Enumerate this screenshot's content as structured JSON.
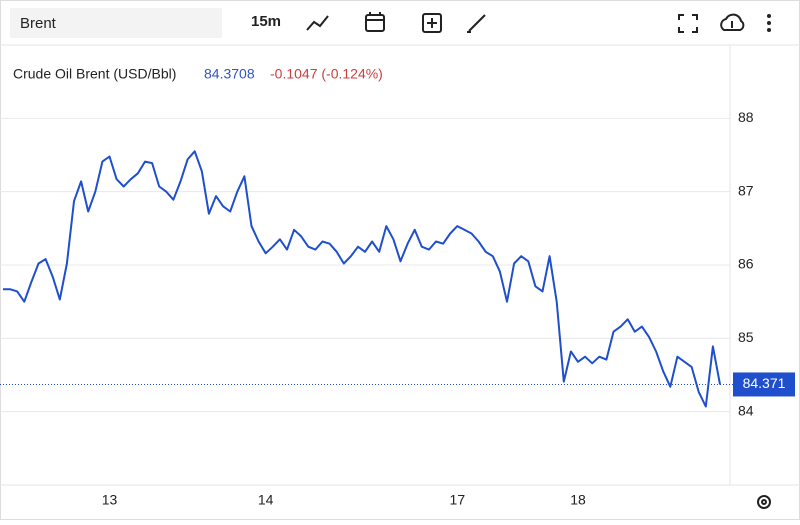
{
  "toolbar": {
    "search": "Brent",
    "interval": "15m"
  },
  "chart_data": {
    "type": "line",
    "legend": {
      "name": "Crude Oil Brent (USD/Bbl)",
      "value": 84.3708,
      "change": "-0.1047 (-0.124%)"
    },
    "last_price": 84.371,
    "color": "#1f4fcc",
    "categories": [
      null,
      null,
      null,
      null,
      null,
      null,
      null,
      null,
      null,
      null,
      null,
      null,
      null,
      null,
      null,
      "13",
      null,
      null,
      null,
      null,
      null,
      null,
      null,
      null,
      null,
      null,
      null,
      null,
      null,
      null,
      null,
      null,
      null,
      null,
      null,
      null,
      null,
      "14",
      null,
      null,
      null,
      null,
      null,
      null,
      null,
      null,
      null,
      null,
      null,
      null,
      null,
      null,
      null,
      null,
      null,
      null,
      null,
      null,
      null,
      null,
      null,
      null,
      null,
      null,
      "17",
      null,
      null,
      null,
      null,
      null,
      null,
      null,
      null,
      null,
      null,
      null,
      null,
      null,
      null,
      null,
      null,
      "18",
      null,
      null,
      null,
      null,
      null,
      null,
      null,
      null,
      null,
      null,
      null,
      null,
      null,
      null,
      null,
      null,
      null,
      null,
      null,
      null
    ],
    "values": [
      85.67,
      85.67,
      85.64,
      85.5,
      85.77,
      86.02,
      86.08,
      85.84,
      85.53,
      86.02,
      86.87,
      87.14,
      86.73,
      87.0,
      87.41,
      87.48,
      87.17,
      87.07,
      87.17,
      87.25,
      87.41,
      87.39,
      87.07,
      87.0,
      86.89,
      87.14,
      87.44,
      87.55,
      87.28,
      86.7,
      86.94,
      86.8,
      86.73,
      87.0,
      87.21,
      86.53,
      86.32,
      86.16,
      86.25,
      86.35,
      86.21,
      86.48,
      86.39,
      86.25,
      86.21,
      86.32,
      86.29,
      86.18,
      86.02,
      86.12,
      86.25,
      86.18,
      86.32,
      86.18,
      86.53,
      86.35,
      86.05,
      86.29,
      86.48,
      86.25,
      86.21,
      86.32,
      86.29,
      86.43,
      86.53,
      86.48,
      86.43,
      86.32,
      86.18,
      86.12,
      85.91,
      85.5,
      86.02,
      86.12,
      86.05,
      85.71,
      85.64,
      86.12,
      85.5,
      84.41,
      84.82,
      84.68,
      84.75,
      84.66,
      84.75,
      84.71,
      85.09,
      85.16,
      85.26,
      85.09,
      85.16,
      85.02,
      84.82,
      84.55,
      84.34,
      84.75,
      84.68,
      84.61,
      84.27,
      84.07,
      84.89,
      84.37
    ],
    "ylim": [
      83,
      89
    ],
    "yticks": [
      84,
      85,
      86,
      87,
      88
    ],
    "grid": true
  }
}
